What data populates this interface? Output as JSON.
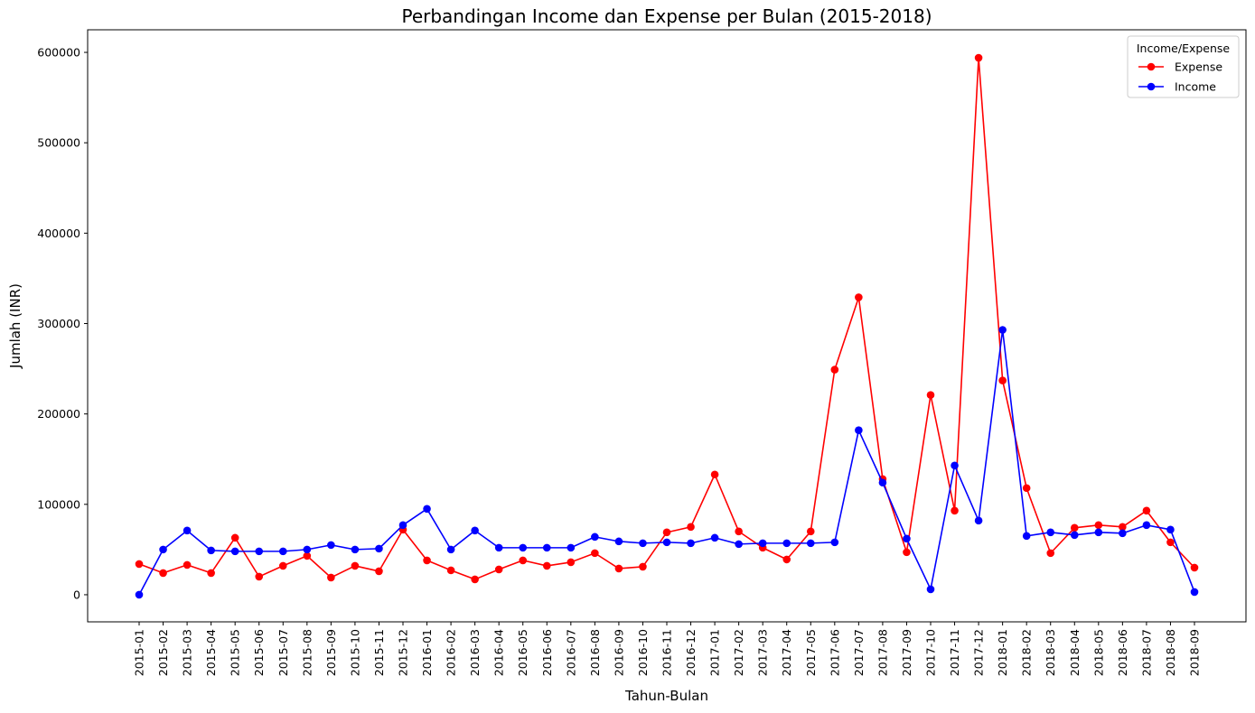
{
  "chart_data": {
    "type": "line",
    "title": "Perbandingan Income dan Expense per Bulan (2015-2018)",
    "xlabel": "Tahun-Bulan",
    "ylabel": "Jumlah (INR)",
    "ylim": [
      -30000,
      625000
    ],
    "yticks": [
      0,
      100000,
      200000,
      300000,
      400000,
      500000,
      600000
    ],
    "grid": false,
    "legend": {
      "title": "Income/Expense",
      "placement": "top-right"
    },
    "categories": [
      "2015-01",
      "2015-02",
      "2015-03",
      "2015-04",
      "2015-05",
      "2015-06",
      "2015-07",
      "2015-08",
      "2015-09",
      "2015-10",
      "2015-11",
      "2015-12",
      "2016-01",
      "2016-02",
      "2016-03",
      "2016-04",
      "2016-05",
      "2016-06",
      "2016-07",
      "2016-08",
      "2016-09",
      "2016-10",
      "2016-11",
      "2016-12",
      "2017-01",
      "2017-02",
      "2017-03",
      "2017-04",
      "2017-05",
      "2017-06",
      "2017-07",
      "2017-08",
      "2017-09",
      "2017-10",
      "2017-11",
      "2017-12",
      "2018-01",
      "2018-02",
      "2018-03",
      "2018-04",
      "2018-05",
      "2018-06",
      "2018-07",
      "2018-08",
      "2018-09"
    ],
    "series": [
      {
        "name": "Expense",
        "color": "#ff0000",
        "values": [
          34000,
          24000,
          33000,
          24000,
          63000,
          20000,
          32000,
          43000,
          19000,
          32000,
          26000,
          72000,
          38000,
          27000,
          17000,
          28000,
          38000,
          32000,
          36000,
          46000,
          29000,
          31000,
          69000,
          75000,
          133000,
          70000,
          52000,
          39000,
          70000,
          249000,
          329000,
          128000,
          47000,
          221000,
          93000,
          594000,
          237000,
          118000,
          46000,
          74000,
          77000,
          75000,
          93000,
          58000,
          30000
        ]
      },
      {
        "name": "Income",
        "color": "#0000ff",
        "values": [
          0,
          50000,
          71000,
          49000,
          48000,
          48000,
          48000,
          50000,
          55000,
          50000,
          51000,
          77000,
          95000,
          50000,
          71000,
          52000,
          52000,
          52000,
          52000,
          64000,
          59000,
          57000,
          58000,
          57000,
          63000,
          56000,
          57000,
          57000,
          57000,
          58000,
          182000,
          124000,
          62000,
          6000,
          143000,
          82000,
          293000,
          65000,
          69000,
          66000,
          69000,
          68000,
          77000,
          72000,
          3000
        ]
      }
    ]
  }
}
